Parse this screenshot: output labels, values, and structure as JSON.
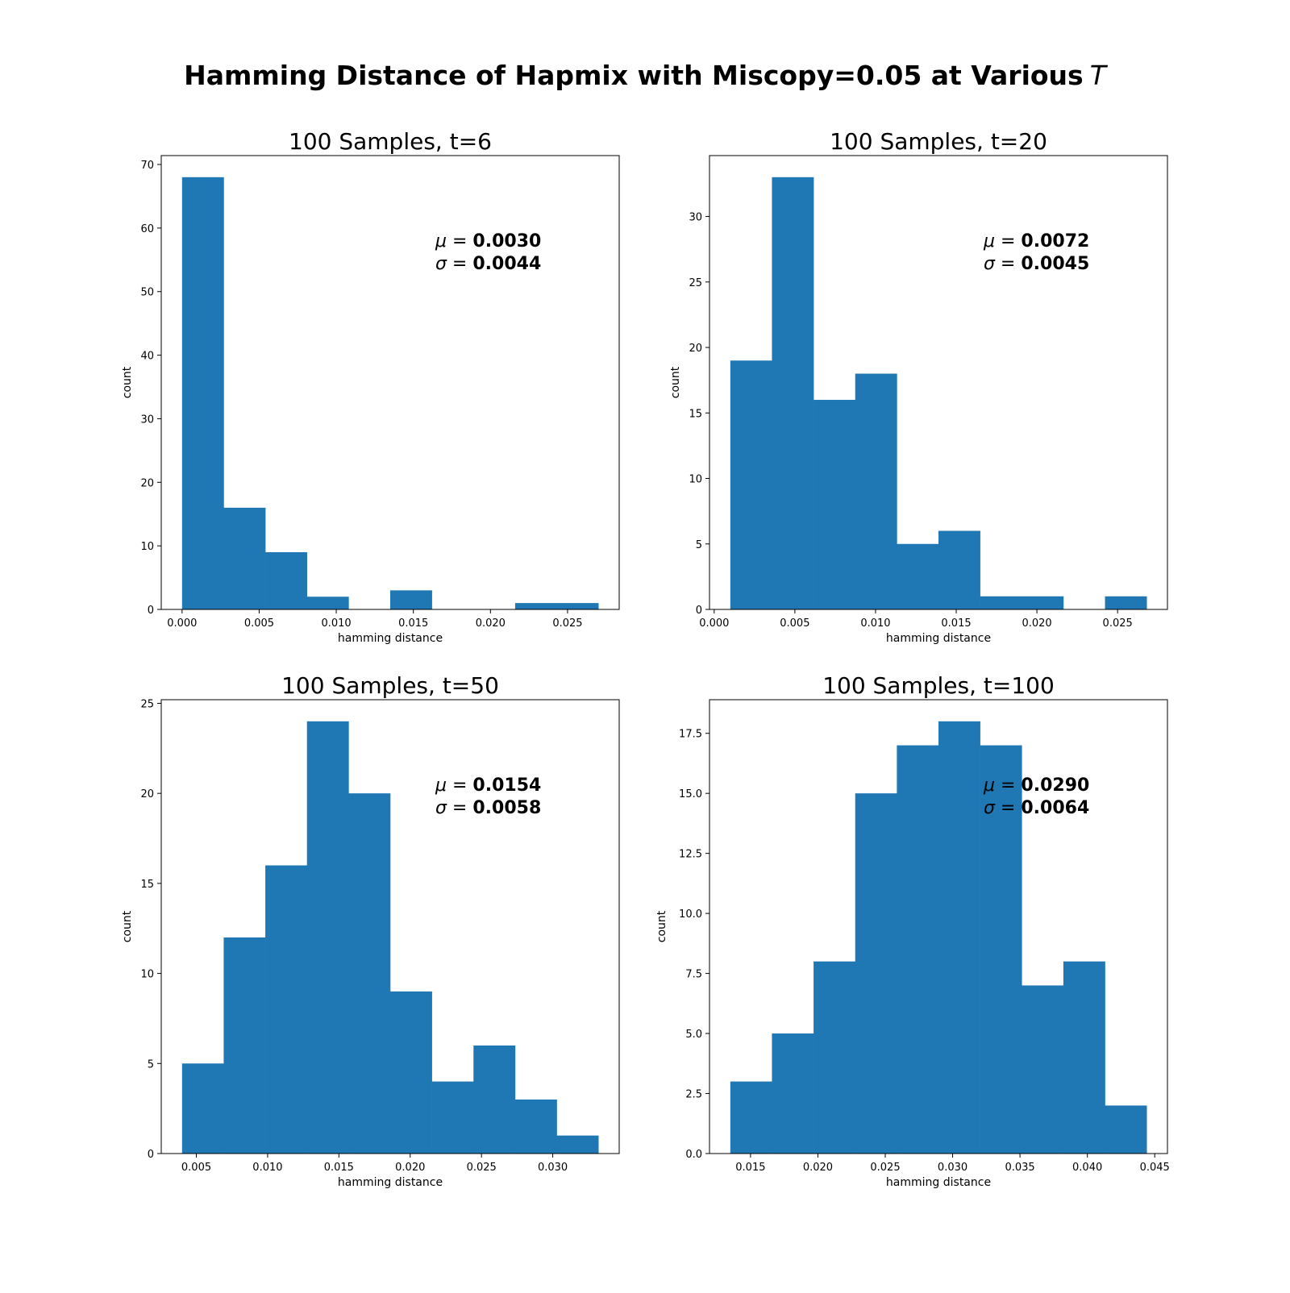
{
  "suptitle": "Hamming Distance of Hapmix with Miscopy=0.05 at Various",
  "suptitle_var": "T",
  "chart_data": [
    {
      "type": "bar",
      "title": "100 Samples, t=6",
      "xlabel": "hamming distance",
      "ylabel": "count",
      "bin_edges": [
        0.0,
        0.0027,
        0.0054,
        0.0081,
        0.0108,
        0.0135,
        0.0162,
        0.0189,
        0.0216,
        0.0243,
        0.027
      ],
      "values": [
        68,
        16,
        9,
        2,
        0,
        3,
        0,
        0,
        1,
        1
      ],
      "xlim": [
        -0.00135,
        0.02835
      ],
      "ylim": [
        0,
        71.4
      ],
      "xticks": [
        0.0,
        0.005,
        0.01,
        0.015,
        0.02,
        0.025
      ],
      "xtick_labels": [
        "0.000",
        "0.005",
        "0.010",
        "0.015",
        "0.020",
        "0.025"
      ],
      "yticks": [
        0,
        10,
        20,
        30,
        40,
        50,
        60,
        70
      ],
      "ytick_labels": [
        "0",
        "10",
        "20",
        "30",
        "40",
        "50",
        "60",
        "70"
      ],
      "annotation": {
        "mu_label": "μ = ",
        "mu_value": "0.0030",
        "sigma_label": "σ = ",
        "sigma_value": "0.0044"
      },
      "color": "#1f77b4"
    },
    {
      "type": "bar",
      "title": "100 Samples, t=20",
      "xlabel": "hamming distance",
      "ylabel": "count",
      "bin_edges": [
        0.001,
        0.00358,
        0.00616,
        0.00874,
        0.01132,
        0.0139,
        0.01648,
        0.01906,
        0.02164,
        0.02422,
        0.0268
      ],
      "values": [
        19,
        33,
        16,
        18,
        5,
        6,
        1,
        1,
        0,
        1
      ],
      "xlim": [
        -0.00029,
        0.02809
      ],
      "ylim": [
        0,
        34.65
      ],
      "xticks": [
        0.0,
        0.005,
        0.01,
        0.015,
        0.02,
        0.025
      ],
      "xtick_labels": [
        "0.000",
        "0.005",
        "0.010",
        "0.015",
        "0.020",
        "0.025"
      ],
      "yticks": [
        0,
        5,
        10,
        15,
        20,
        25,
        30
      ],
      "ytick_labels": [
        "0",
        "5",
        "10",
        "15",
        "20",
        "25",
        "30"
      ],
      "annotation": {
        "mu_label": "μ = ",
        "mu_value": "0.0072",
        "sigma_label": "σ = ",
        "sigma_value": "0.0045"
      },
      "color": "#1f77b4"
    },
    {
      "type": "bar",
      "title": "100 Samples, t=50",
      "xlabel": "hamming distance",
      "ylabel": "count",
      "bin_edges": [
        0.004,
        0.00692,
        0.00984,
        0.01276,
        0.01568,
        0.0186,
        0.02152,
        0.02444,
        0.02736,
        0.03028,
        0.0332
      ],
      "values": [
        5,
        12,
        16,
        24,
        20,
        9,
        4,
        6,
        3,
        1
      ],
      "xlim": [
        0.00254,
        0.03466
      ],
      "ylim": [
        0,
        25.2
      ],
      "xticks": [
        0.005,
        0.01,
        0.015,
        0.02,
        0.025,
        0.03
      ],
      "xtick_labels": [
        "0.005",
        "0.010",
        "0.015",
        "0.020",
        "0.025",
        "0.030"
      ],
      "yticks": [
        0,
        5,
        10,
        15,
        20,
        25
      ],
      "ytick_labels": [
        "0",
        "5",
        "10",
        "15",
        "20",
        "25"
      ],
      "annotation": {
        "mu_label": "μ = ",
        "mu_value": "0.0154",
        "sigma_label": "σ = ",
        "sigma_value": "0.0058"
      },
      "color": "#1f77b4"
    },
    {
      "type": "bar",
      "title": "100 Samples, t=100",
      "xlabel": "hamming distance",
      "ylabel": "count",
      "bin_edges": [
        0.0135,
        0.01659,
        0.01968,
        0.02277,
        0.02586,
        0.02895,
        0.03204,
        0.03513,
        0.03822,
        0.04131,
        0.0444
      ],
      "values": [
        3,
        5,
        8,
        15,
        17,
        18,
        17,
        7,
        8,
        2
      ],
      "xlim": [
        0.011955,
        0.045945
      ],
      "ylim": [
        0,
        18.9
      ],
      "xticks": [
        0.015,
        0.02,
        0.025,
        0.03,
        0.035,
        0.04,
        0.045
      ],
      "xtick_labels": [
        "0.015",
        "0.020",
        "0.025",
        "0.030",
        "0.035",
        "0.040",
        "0.045"
      ],
      "yticks": [
        0,
        2.5,
        5,
        7.5,
        10,
        12.5,
        15,
        17.5
      ],
      "ytick_labels": [
        "0.0",
        "2.5",
        "5.0",
        "7.5",
        "10.0",
        "12.5",
        "15.0",
        "17.5"
      ],
      "annotation": {
        "mu_label": "μ = ",
        "mu_value": "0.0290",
        "sigma_label": "σ = ",
        "sigma_value": "0.0064"
      },
      "color": "#1f77b4"
    }
  ]
}
